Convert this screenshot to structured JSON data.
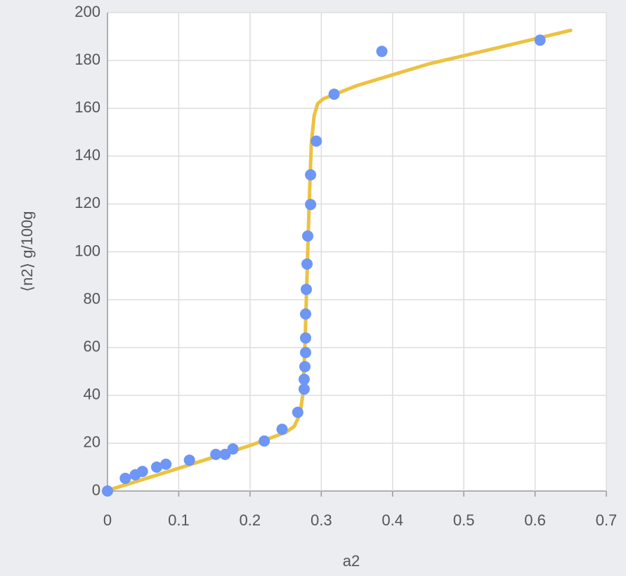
{
  "chart_data": {
    "type": "scatter",
    "x_label": "a2",
    "y_label": "⟨n2⟩ g/100g",
    "xlim": [
      0,
      0.7
    ],
    "ylim": [
      0,
      200
    ],
    "xticks": [
      0,
      0.1,
      0.2,
      0.3,
      0.4,
      0.5,
      0.6,
      0.7
    ],
    "yticks": [
      0,
      20,
      40,
      60,
      80,
      100,
      120,
      140,
      160,
      180,
      200
    ],
    "grid": true,
    "series": [
      {
        "type": "line",
        "color": "#ecc241",
        "x": [
          0.007,
          0.1,
          0.2,
          0.25,
          0.262,
          0.27,
          0.274,
          0.277,
          0.28,
          0.283,
          0.286,
          0.29,
          0.295,
          0.303,
          0.35,
          0.45,
          0.55,
          0.65
        ],
        "values": [
          0.9,
          9.5,
          19,
          24.5,
          27,
          32,
          40,
          60,
          90,
          120,
          145,
          157,
          162,
          164,
          169.5,
          178.5,
          185.5,
          192.6
        ]
      },
      {
        "type": "scatter",
        "color": "#6d96f5",
        "x": [
          0,
          0.025,
          0.039,
          0.049,
          0.069,
          0.082,
          0.115,
          0.152,
          0.165,
          0.176,
          0.22,
          0.245,
          0.267,
          0.276,
          0.276,
          0.277,
          0.278,
          0.278,
          0.278,
          0.279,
          0.28,
          0.281,
          0.285,
          0.285,
          0.293,
          0.318,
          0.385,
          0.607
        ],
        "values": [
          0,
          5.3,
          6.8,
          8.2,
          10,
          11.2,
          12.9,
          15.3,
          15.3,
          17.6,
          20.9,
          25.8,
          32.9,
          42.6,
          46.7,
          52,
          57.9,
          64,
          74,
          84.3,
          94.9,
          106.6,
          119.8,
          132.2,
          146.3,
          165.9,
          183.8,
          188.5
        ]
      }
    ]
  }
}
